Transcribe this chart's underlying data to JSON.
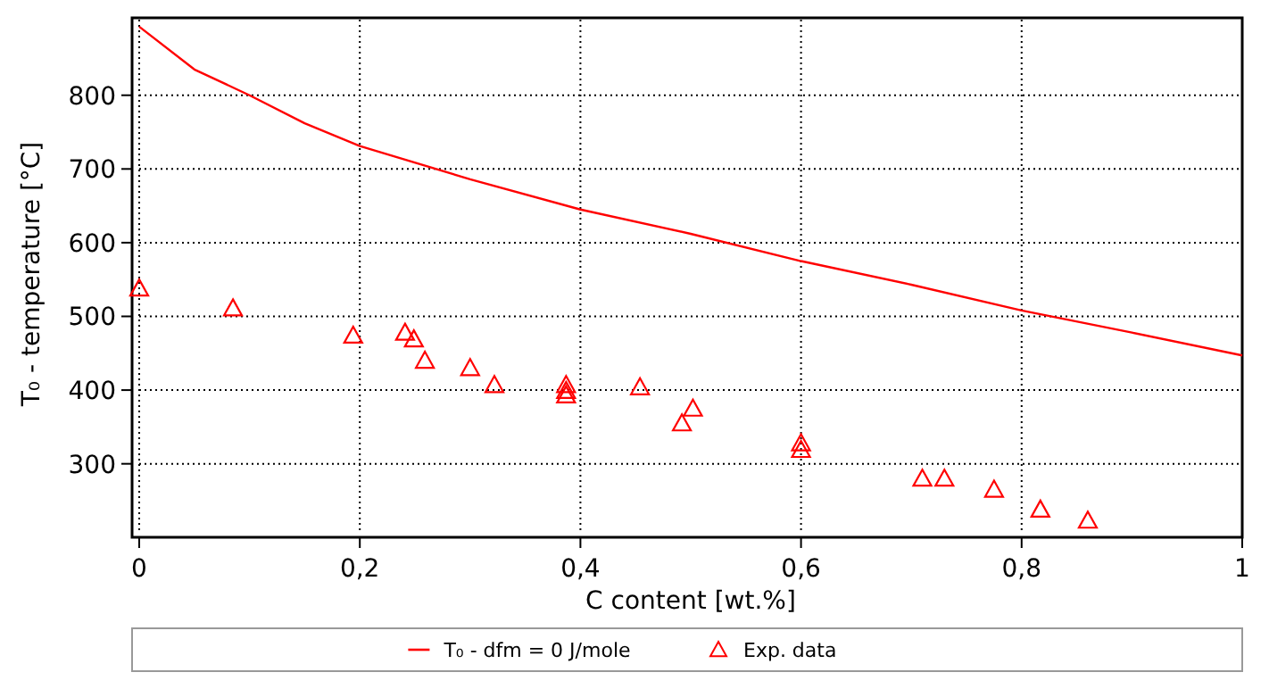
{
  "chart_data": {
    "type": "line",
    "xlabel": "C content [wt.%]",
    "ylabel": "T₀ - temperature [°C]",
    "xlim": [
      0,
      1
    ],
    "xticks": [
      0,
      {
        "value": 0.2,
        "label": "0,2"
      },
      {
        "value": 0.4,
        "label": "0,4"
      },
      {
        "value": 0.6,
        "label": "0,6"
      },
      {
        "value": 0.8,
        "label": "0,8"
      },
      1
    ],
    "ylim": [
      210,
      905
    ],
    "yticks": [
      300,
      400,
      500,
      600,
      700,
      800
    ],
    "grid": true,
    "legend": "bottom",
    "series": [
      {
        "name": "T₀ - dfm = 0 J/mole",
        "color": "#ff0000",
        "marker": "none",
        "line_style": "solid",
        "x": [
          0,
          0.05,
          0.1,
          0.15,
          0.2,
          0.3,
          0.4,
          0.5,
          0.6,
          0.7,
          0.8,
          0.9,
          1
        ],
        "values": [
          893,
          835,
          800,
          762,
          731,
          686,
          645,
          612,
          575,
          543,
          508,
          478,
          447
        ]
      },
      {
        "name": "Exp. data",
        "type": "scatter",
        "color": "#ff0000",
        "marker": "triangle",
        "x": [
          0,
          0.085,
          0.194,
          0.241,
          0.249,
          0.259,
          0.3,
          0.322,
          0.387,
          0.387,
          0.387,
          0.454,
          0.492,
          0.502,
          0.6,
          0.6,
          0.71,
          0.73,
          0.775,
          0.817,
          0.86
        ],
        "values": [
          538,
          511,
          474,
          478,
          469,
          440,
          430,
          407,
          407,
          399,
          393,
          404,
          355,
          375,
          328,
          319,
          280,
          280,
          265,
          238,
          223
        ]
      }
    ]
  }
}
